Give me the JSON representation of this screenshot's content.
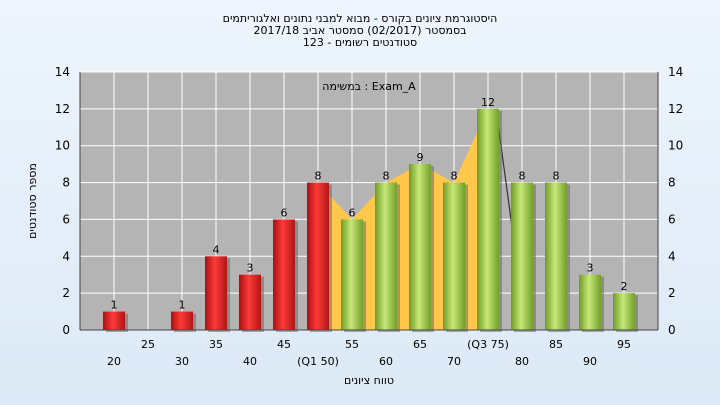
{
  "chart_data": {
    "type": "bar",
    "title_lines": [
      "היסטוגרמת ציונים בקורס - מבוא למבני נתונים ואלגוריתמים",
      "בסמסטר  (02/2017)  סמסטר אביב 2017/18",
      "סטודנטים רשומים - 123"
    ],
    "annotation": "במשימה : Exam_A",
    "xlabel": "טווח ציונים",
    "ylabel": "מספר סטודנטים",
    "ylim": [
      0,
      14
    ],
    "yticks": [
      0,
      2,
      4,
      6,
      8,
      10,
      12,
      14
    ],
    "grid": true,
    "x_tick_labels": [
      "20",
      "25",
      "30",
      "35",
      "40",
      "45",
      "(Q1 50)",
      "55",
      "60",
      "65",
      "70",
      "(Q3 75)",
      "80",
      "85",
      "90",
      "95"
    ],
    "bars": [
      {
        "x": 20,
        "value": 1,
        "color": "#e02424"
      },
      {
        "x": 30,
        "value": 1,
        "color": "#e02424"
      },
      {
        "x": 35,
        "value": 4,
        "color": "#e02424"
      },
      {
        "x": 40,
        "value": 3,
        "color": "#e02424"
      },
      {
        "x": 45,
        "value": 6,
        "color": "#e02424"
      },
      {
        "x": 50,
        "value": 8,
        "color": "#e02424"
      },
      {
        "x": 55,
        "value": 6,
        "color": "#8fc13c"
      },
      {
        "x": 60,
        "value": 8,
        "color": "#8fc13c"
      },
      {
        "x": 65,
        "value": 9,
        "color": "#8fc13c"
      },
      {
        "x": 70,
        "value": 8,
        "color": "#8fc13c"
      },
      {
        "x": 75,
        "value": 12,
        "color": "#8fc13c"
      },
      {
        "x": 80,
        "value": 8,
        "color": "#8fc13c"
      },
      {
        "x": 85,
        "value": 8,
        "color": "#8fc13c"
      },
      {
        "x": 90,
        "value": 3,
        "color": "#8fc13c"
      },
      {
        "x": 95,
        "value": 2,
        "color": "#8fc13c"
      }
    ],
    "quartile_band_color": "#ffc84a",
    "plot_background": "#b4b4b4"
  }
}
